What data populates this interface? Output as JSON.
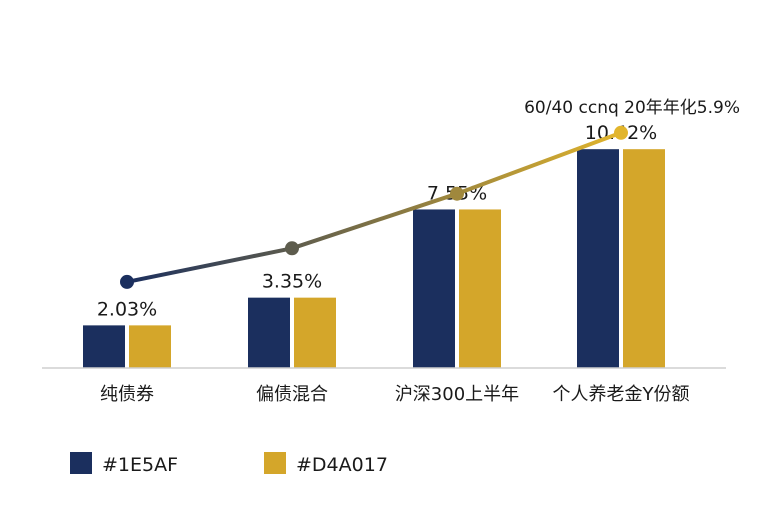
{
  "chart_data": {
    "type": "bar",
    "categories": [
      "纯债券",
      "偏债混合",
      "沪深300上半年",
      "个人养老金Y份额"
    ],
    "series": [
      {
        "name": "#1E5AF",
        "color": "#1B2F5E",
        "values": [
          2.03,
          3.35,
          7.55,
          10.42
        ]
      },
      {
        "name": "#D4A017",
        "color": "#D4A62A",
        "values": [
          2.03,
          3.35,
          7.55,
          10.42
        ]
      }
    ],
    "data_labels": [
      "2.03%",
      "3.35%",
      "7.55%",
      "10.42%"
    ],
    "line": {
      "values": [
        4.1,
        5.7,
        8.3,
        11.2
      ],
      "color_start": "#1B2F5E",
      "color_end": "#E2B52C",
      "annotation": "60/40 ccnq 20年年化5.9%"
    },
    "ylim": [
      0,
      13
    ],
    "grid": false,
    "legend_position": "bottom-left",
    "title": "",
    "xlabel": "",
    "ylabel": ""
  }
}
